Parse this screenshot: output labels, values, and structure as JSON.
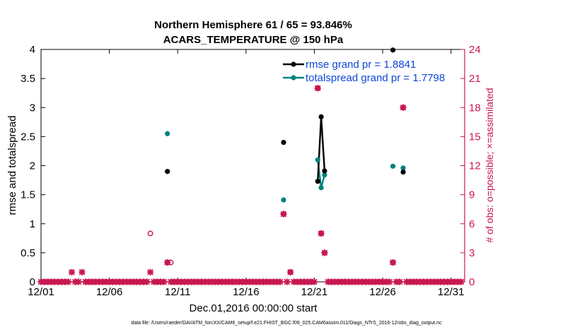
{
  "chart_data": {
    "type": "scatter",
    "title": "Northern Hemisphere 61 / 65 = 93.846%",
    "subtitle": "ACARS_TEMPERATURE @ 150 hPa",
    "xlabel": "Dec.01,2016 00:00:00 start",
    "ylabel_left": "rmse and totalspread",
    "ylabel_right": "# of obs: o=possible; ×=assimilated",
    "footnote": "data file: /Users/raeder/DAI/ATM_forcXX/CAM6_setup/f.e21.FHIST_BGC.f09_025.CAM6assim.011/Diags_NTrS_2016-12/obs_diag_output.nc",
    "xlim": [
      1,
      32
    ],
    "ylim_left": [
      0,
      4
    ],
    "ylim_right": [
      0,
      24
    ],
    "x_ticks": [
      {
        "x": 1,
        "label": "12/01"
      },
      {
        "x": 6,
        "label": "12/06"
      },
      {
        "x": 11,
        "label": "12/11"
      },
      {
        "x": 16,
        "label": "12/16"
      },
      {
        "x": 21,
        "label": "12/21"
      },
      {
        "x": 26,
        "label": "12/26"
      },
      {
        "x": 31,
        "label": "12/31"
      }
    ],
    "y_ticks_left": [
      "0",
      "0.5",
      "1",
      "1.5",
      "2",
      "2.5",
      "3",
      "3.5",
      "4"
    ],
    "y_ticks_right": [
      "0",
      "3",
      "6",
      "9",
      "12",
      "15",
      "18",
      "21",
      "24"
    ],
    "grid": false,
    "legend_position": "top-right",
    "colors": {
      "rmse": "#000000",
      "totalspread": "#00827f",
      "obs": "#c8174f"
    },
    "series": [
      {
        "name": "rmse grand pr = 1.8841",
        "axis": "left",
        "points": [
          [
            10.25,
            1.9
          ],
          [
            18.75,
            2.4
          ],
          [
            21.25,
            1.73
          ],
          [
            21.5,
            2.84
          ],
          [
            21.75,
            1.91
          ],
          [
            26.75,
            3.99
          ],
          [
            27.5,
            1.89
          ]
        ]
      },
      {
        "name": "totalspread grand pr = 1.7798",
        "axis": "left",
        "points": [
          [
            10.25,
            2.55
          ],
          [
            18.75,
            1.41
          ],
          [
            21.25,
            2.1
          ],
          [
            21.5,
            1.62
          ],
          [
            21.75,
            1.84
          ],
          [
            26.75,
            1.99
          ],
          [
            27.5,
            1.96
          ]
        ]
      }
    ],
    "line_segments": [
      [
        21.25,
        21.5,
        21.75
      ]
    ],
    "obs_possible": [
      [
        9.0,
        5
      ],
      [
        10.25,
        2
      ],
      [
        10.5,
        2
      ],
      [
        18.75,
        7
      ],
      [
        19.25,
        1
      ],
      [
        21.25,
        20
      ],
      [
        21.5,
        5
      ],
      [
        21.75,
        3
      ],
      [
        26.75,
        2
      ],
      [
        27.5,
        18
      ]
    ],
    "obs_assimilated": [
      [
        3.25,
        1
      ],
      [
        4.0,
        1
      ],
      [
        9.0,
        1
      ],
      [
        10.25,
        2
      ],
      [
        18.75,
        7
      ],
      [
        19.25,
        1
      ],
      [
        21.25,
        20
      ],
      [
        21.5,
        5
      ],
      [
        21.75,
        3
      ],
      [
        26.75,
        2
      ],
      [
        27.5,
        18
      ]
    ]
  }
}
